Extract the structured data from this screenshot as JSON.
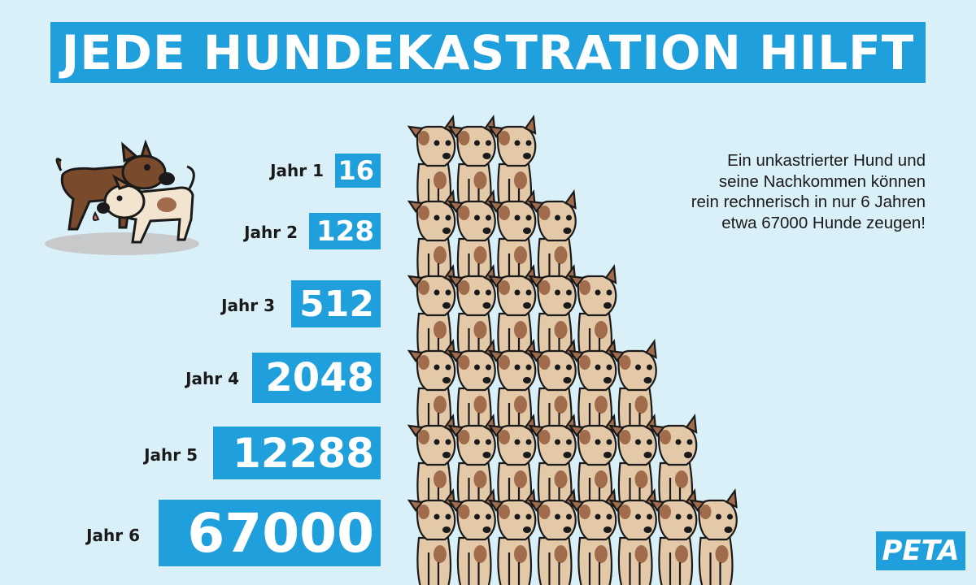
{
  "title": "JEDE HUNDEKASTRATION HILFT",
  "rows": [
    {
      "label": "Jahr 1",
      "value": "16"
    },
    {
      "label": "Jahr 2",
      "value": "128"
    },
    {
      "label": "Jahr 3",
      "value": "512"
    },
    {
      "label": "Jahr 4",
      "value": "2048"
    },
    {
      "label": "Jahr 5",
      "value": "12288"
    },
    {
      "label": "Jahr 6",
      "value": "67000"
    }
  ],
  "description": {
    "lines": [
      "Ein unkastrierter Hund und",
      "seine Nachkommen können",
      "rein rechnerisch in nur 6 Jahren",
      "etwa 67000 Hunde zeugen!"
    ]
  },
  "logo": "PETA",
  "colors": {
    "background": "#d9f0f9",
    "accent": "#1f9fdc",
    "dog_fur": "#e3c9a8",
    "dog_spot": "#a06c4c",
    "dog_dark": "#7a4a2c"
  },
  "illustration": {
    "icon": "dog-icon",
    "dogs_per_row": [
      3,
      4,
      5,
      6,
      7,
      8
    ]
  }
}
